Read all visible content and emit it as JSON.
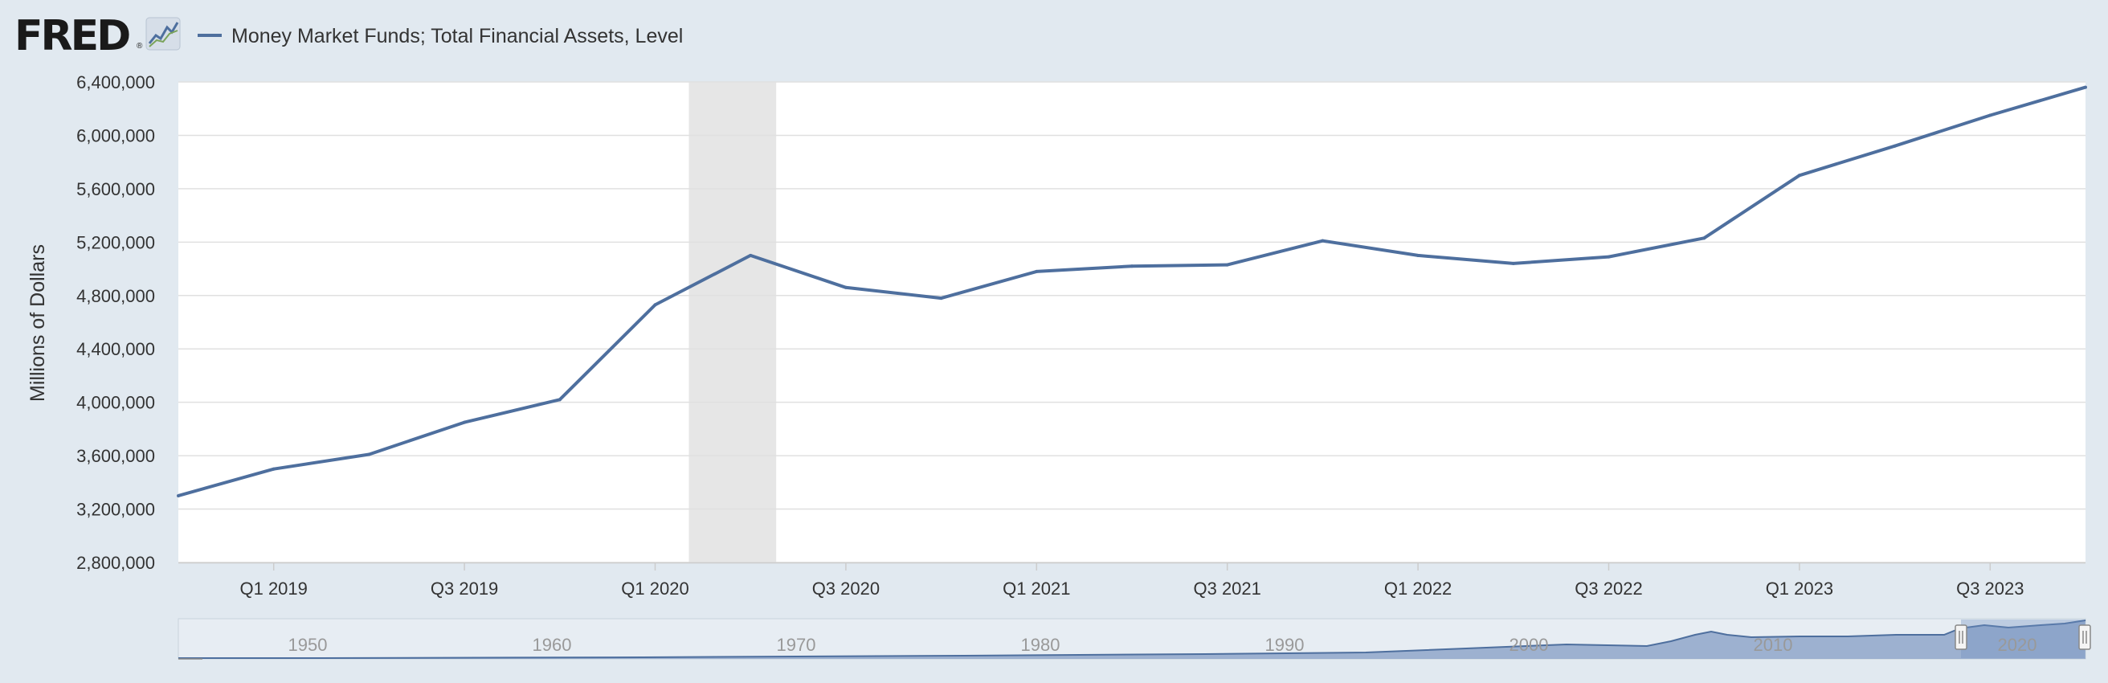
{
  "header": {
    "logo_text": "FRED",
    "logo_icon": "line-chart-icon",
    "legend_label": "Money Market Funds; Total Financial Assets, Level"
  },
  "colors": {
    "series": "#4e6f9e",
    "recession": "#e6e6e6",
    "plot_bg": "#ffffff",
    "page_bg": "#e1e9f0",
    "navigator_fill": "#8fa6c9",
    "navigator_selection": "#c9d4e6"
  },
  "chart_data": {
    "type": "line",
    "title": "",
    "ylabel": "Millions of Dollars",
    "xlabel": "",
    "ylim": [
      2800000,
      6400000
    ],
    "yticks": [
      2800000,
      3200000,
      3600000,
      4000000,
      4400000,
      4800000,
      5200000,
      5600000,
      6000000,
      6400000
    ],
    "ytick_labels": [
      "2,800,000",
      "3,200,000",
      "3,600,000",
      "4,000,000",
      "4,400,000",
      "4,800,000",
      "5,200,000",
      "5,600,000",
      "6,000,000",
      "6,400,000"
    ],
    "xtick_labels": [
      "Q1 2019",
      "Q3 2019",
      "Q1 2020",
      "Q3 2020",
      "Q1 2021",
      "Q3 2021",
      "Q1 2022",
      "Q3 2022",
      "Q1 2023",
      "Q3 2023"
    ],
    "x": [
      "2018 Q4",
      "2019 Q1",
      "2019 Q2",
      "2019 Q3",
      "2019 Q4",
      "2020 Q1",
      "2020 Q2",
      "2020 Q3",
      "2020 Q4",
      "2021 Q1",
      "2021 Q2",
      "2021 Q3",
      "2021 Q4",
      "2022 Q1",
      "2022 Q2",
      "2022 Q3",
      "2022 Q4",
      "2023 Q1",
      "2023 Q2",
      "2023 Q3",
      "2023 Q4"
    ],
    "series": [
      {
        "values": [
          3300000,
          3500000,
          3610000,
          3850000,
          4020000,
          4730000,
          5100000,
          4860000,
          4780000,
          4980000,
          5020000,
          5030000,
          5210000,
          5100000,
          5040000,
          5090000,
          5230000,
          5700000,
          5920000,
          6150000,
          6360000
        ]
      }
    ],
    "recession": {
      "start": "2020 Q1",
      "end": "2020 Q2"
    },
    "grid": true,
    "legend_position": "top-left",
    "navigator": {
      "labels": [
        "1950",
        "1960",
        "1970",
        "1980",
        "1990",
        "2000",
        "2010",
        "2020"
      ]
    }
  }
}
